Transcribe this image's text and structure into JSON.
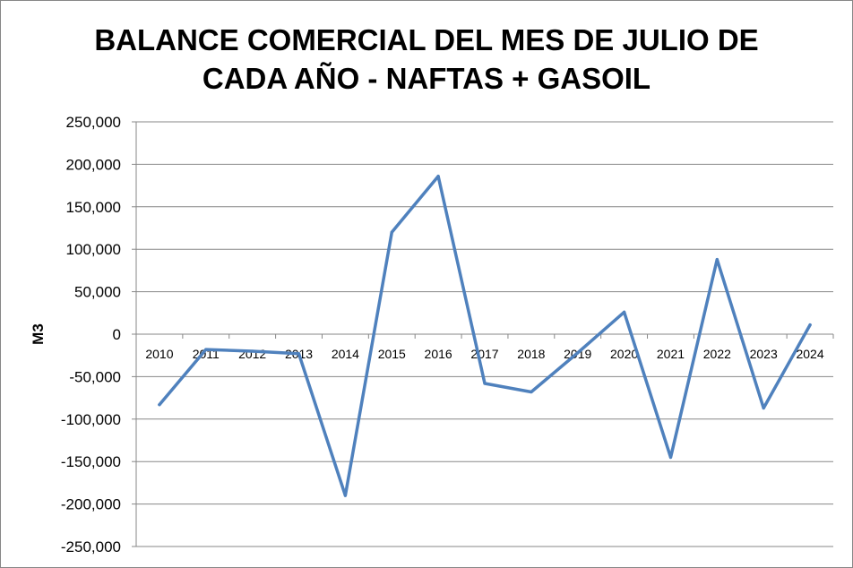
{
  "chart_data": {
    "type": "line",
    "title_lines": [
      "BALANCE COMERCIAL DEL MES DE JULIO DE",
      "CADA AÑO - NAFTAS + GASOIL"
    ],
    "xlabel": "",
    "ylabel": "M3",
    "ylim": [
      -250000,
      250000
    ],
    "ytick_step": 50000,
    "yticks": [
      "250,000",
      "200,000",
      "150,000",
      "100,000",
      "50,000",
      "0",
      "-50,000",
      "-100,000",
      "-150,000",
      "-200,000",
      "-250,000"
    ],
    "grid": true,
    "legend": false,
    "categories": [
      "2010",
      "2011",
      "2012",
      "2013",
      "2014",
      "2015",
      "2016",
      "2017",
      "2018",
      "2019",
      "2020",
      "2021",
      "2022",
      "2023",
      "2024"
    ],
    "series": [
      {
        "color": "#4f81bd",
        "values": [
          -83000,
          -18000,
          -20000,
          -23000,
          -190000,
          120000,
          186000,
          -58000,
          -68000,
          -22000,
          26000,
          -145000,
          88000,
          -87000,
          11000
        ]
      }
    ]
  }
}
